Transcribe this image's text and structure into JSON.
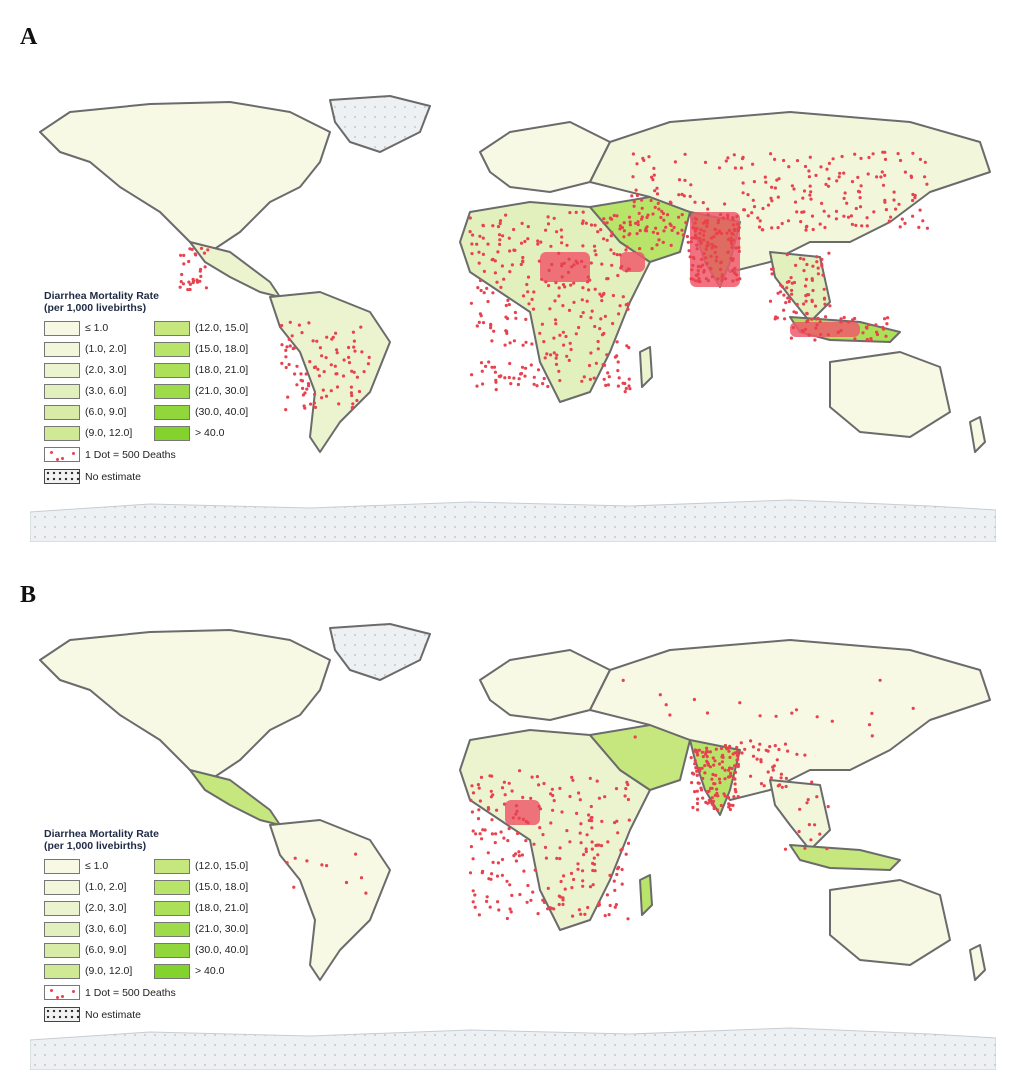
{
  "panels": [
    {
      "label": "A",
      "legend": {
        "title_line1": "Diarrhea Mortality Rate",
        "title_line2": "(per 1,000 livebirths)",
        "bins": [
          {
            "label": "≤ 1.0",
            "color": "#f7f9e4"
          },
          {
            "label": "(12.0, 15.0]",
            "color": "#c5e77e"
          },
          {
            "label": "(1.0, 2.0]",
            "color": "#f2f7dc"
          },
          {
            "label": "(15.0, 18.0]",
            "color": "#b8e46a"
          },
          {
            "label": "(2.0, 3.0]",
            "color": "#ebf4cf"
          },
          {
            "label": "(18.0, 21.0]",
            "color": "#abe058"
          },
          {
            "label": "(3.0, 6.0]",
            "color": "#e2f0bd"
          },
          {
            "label": "(21.0, 30.0]",
            "color": "#9edb48"
          },
          {
            "label": "(6.0, 9.0]",
            "color": "#d8eca7"
          },
          {
            "label": "(30.0, 40.0]",
            "color": "#91d63a"
          },
          {
            "label": "(9.0, 12.0]",
            "color": "#cfe994"
          },
          {
            "label": "> 40.0",
            "color": "#84d22c"
          }
        ],
        "dot_label": "1 Dot = 500 Deaths",
        "no_estimate_label": "No estimate"
      }
    },
    {
      "label": "B",
      "legend": {
        "title_line1": "Diarrhea Mortality Rate",
        "title_line2": "(per 1,000 livebirths)",
        "bins": [
          {
            "label": "≤ 1.0",
            "color": "#f7f9e4"
          },
          {
            "label": "(12.0, 15.0]",
            "color": "#c5e77e"
          },
          {
            "label": "(1.0, 2.0]",
            "color": "#f2f7dc"
          },
          {
            "label": "(15.0, 18.0]",
            "color": "#b8e46a"
          },
          {
            "label": "(2.0, 3.0]",
            "color": "#ebf4cf"
          },
          {
            "label": "(18.0, 21.0]",
            "color": "#abe058"
          },
          {
            "label": "(3.0, 6.0]",
            "color": "#e2f0bd"
          },
          {
            "label": "(21.0, 30.0]",
            "color": "#9edb48"
          },
          {
            "label": "(6.0, 9.0]",
            "color": "#d8eca7"
          },
          {
            "label": "(30.0, 40.0]",
            "color": "#91d63a"
          },
          {
            "label": "(9.0, 12.0]",
            "color": "#cfe994"
          },
          {
            "label": "> 40.0",
            "color": "#84d22c"
          }
        ],
        "dot_label": "1 Dot = 500 Deaths",
        "no_estimate_label": "No estimate"
      }
    }
  ],
  "colors": {
    "dot": "#e8424f",
    "border": "#6b6b6b",
    "dense_fill": "#ef5a6b",
    "no_estimate_fill": "#eef1f3"
  }
}
